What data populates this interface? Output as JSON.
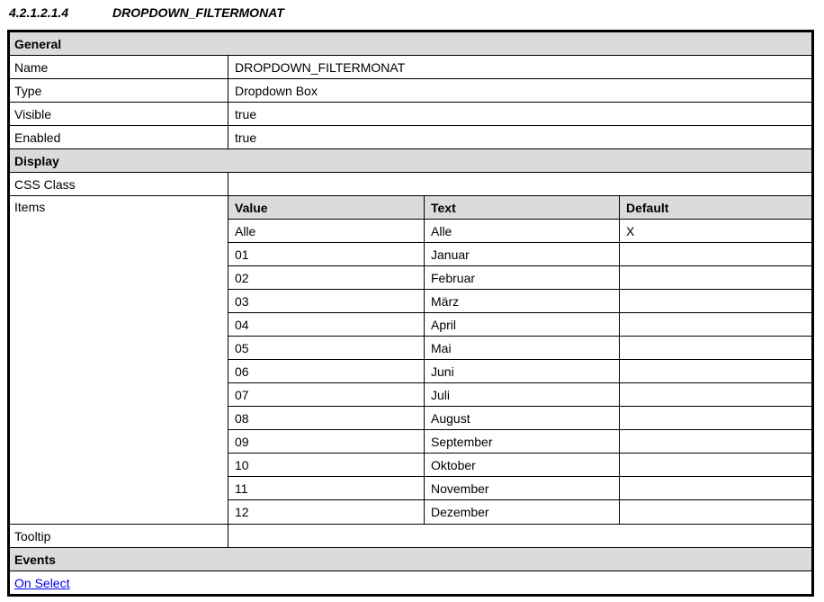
{
  "heading": {
    "number": "4.2.1.2.1.4",
    "title": "DROPDOWN_FILTERMONAT"
  },
  "colors": {
    "section_header_bg": "#dbdbdb",
    "border": "#000000",
    "link": "#0000ee"
  },
  "general": {
    "section_label": "General",
    "rows": [
      {
        "label": "Name",
        "value": "DROPDOWN_FILTERMONAT"
      },
      {
        "label": "Type",
        "value": "Dropdown Box"
      },
      {
        "label": "Visible",
        "value": "true"
      },
      {
        "label": "Enabled",
        "value": "true"
      }
    ]
  },
  "display": {
    "section_label": "Display",
    "css_class": {
      "label": "CSS Class",
      "value": ""
    },
    "items": {
      "label": "Items",
      "columns": [
        "Value",
        "Text",
        "Default"
      ],
      "rows": [
        {
          "value": "Alle",
          "text": "Alle",
          "default": "X"
        },
        {
          "value": "01",
          "text": "Januar",
          "default": ""
        },
        {
          "value": "02",
          "text": "Februar",
          "default": ""
        },
        {
          "value": "03",
          "text": "März",
          "default": ""
        },
        {
          "value": "04",
          "text": "April",
          "default": ""
        },
        {
          "value": "05",
          "text": "Mai",
          "default": ""
        },
        {
          "value": "06",
          "text": "Juni",
          "default": ""
        },
        {
          "value": "07",
          "text": "Juli",
          "default": ""
        },
        {
          "value": "08",
          "text": "August",
          "default": ""
        },
        {
          "value": "09",
          "text": "September",
          "default": ""
        },
        {
          "value": "10",
          "text": "Oktober",
          "default": ""
        },
        {
          "value": "11",
          "text": "November",
          "default": ""
        },
        {
          "value": "12",
          "text": "Dezember",
          "default": ""
        }
      ]
    },
    "tooltip": {
      "label": "Tooltip",
      "value": ""
    }
  },
  "events": {
    "section_label": "Events",
    "links": [
      {
        "label": "On Select"
      }
    ]
  }
}
